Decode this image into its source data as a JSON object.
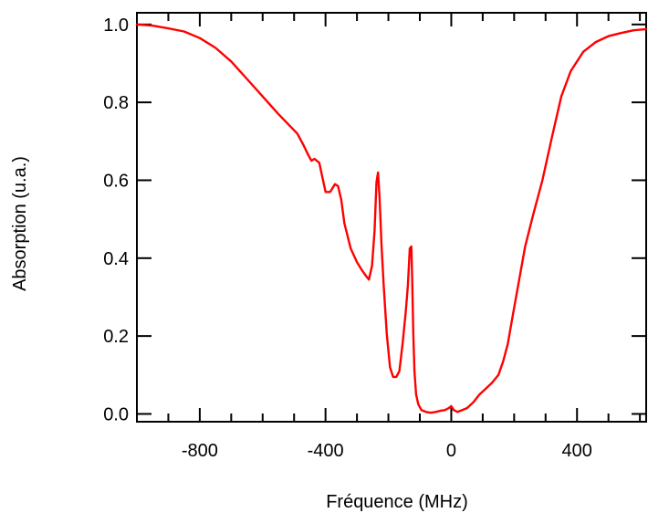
{
  "chart_data": {
    "type": "line",
    "title": "",
    "xlabel": "Fréquence (MHz)",
    "ylabel": "Absorption (u.a.)",
    "xlim": [
      -1000,
      620
    ],
    "ylim": [
      -0.02,
      1.03
    ],
    "xticks": [
      -800,
      -400,
      0,
      400
    ],
    "xtick_labels": [
      "-800",
      "-400",
      "0",
      "400"
    ],
    "yticks": [
      0.0,
      0.2,
      0.4,
      0.6,
      0.8,
      1.0
    ],
    "ytick_labels": [
      "0.0",
      "0.2",
      "0.4",
      "0.6",
      "0.8",
      "1.0"
    ],
    "minor_x_step": 100,
    "minor_y_step": 0.1,
    "grid": false,
    "legend": "none",
    "line_color": "#ff0000",
    "series": [
      {
        "x": [
          -1000,
          -950,
          -900,
          -850,
          -800,
          -750,
          -700,
          -650,
          -600,
          -550,
          -520,
          -490,
          -470,
          -455,
          -445,
          -435,
          -420,
          -400,
          -385,
          -370,
          -360,
          -350,
          -340,
          -320,
          -300,
          -285,
          -272,
          -262,
          -252,
          -244,
          -238,
          -233,
          -228,
          -222,
          -215,
          -205,
          -195,
          -185,
          -175,
          -165,
          -155,
          -145,
          -138,
          -132,
          -127,
          -124,
          -121,
          -117,
          -112,
          -105,
          -95,
          -80,
          -65,
          -50,
          -35,
          -20,
          -8,
          0,
          8,
          20,
          35,
          50,
          70,
          90,
          110,
          130,
          150,
          165,
          180,
          195,
          215,
          235,
          260,
          290,
          320,
          350,
          380,
          420,
          460,
          500,
          540,
          580,
          620
        ],
        "y": [
          1.0,
          0.997,
          0.99,
          0.982,
          0.965,
          0.94,
          0.905,
          0.86,
          0.815,
          0.77,
          0.745,
          0.72,
          0.69,
          0.665,
          0.65,
          0.655,
          0.645,
          0.57,
          0.57,
          0.59,
          0.585,
          0.55,
          0.49,
          0.425,
          0.39,
          0.37,
          0.355,
          0.345,
          0.38,
          0.47,
          0.595,
          0.62,
          0.555,
          0.435,
          0.33,
          0.205,
          0.12,
          0.095,
          0.095,
          0.11,
          0.18,
          0.26,
          0.33,
          0.425,
          0.43,
          0.34,
          0.21,
          0.11,
          0.05,
          0.025,
          0.01,
          0.005,
          0.003,
          0.005,
          0.008,
          0.01,
          0.015,
          0.02,
          0.01,
          0.005,
          0.01,
          0.015,
          0.03,
          0.05,
          0.065,
          0.08,
          0.1,
          0.135,
          0.18,
          0.25,
          0.34,
          0.43,
          0.51,
          0.6,
          0.71,
          0.815,
          0.88,
          0.93,
          0.955,
          0.97,
          0.978,
          0.985,
          0.988
        ]
      }
    ]
  }
}
